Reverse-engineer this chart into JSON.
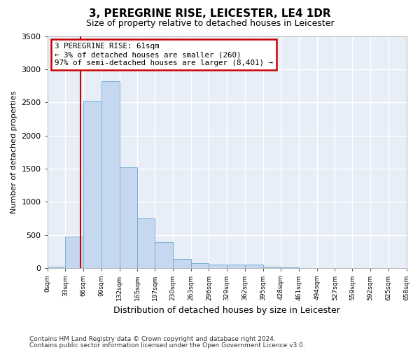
{
  "title": "3, PEREGRINE RISE, LEICESTER, LE4 1DR",
  "subtitle": "Size of property relative to detached houses in Leicester",
  "xlabel": "Distribution of detached houses by size in Leicester",
  "ylabel": "Number of detached properties",
  "bar_color": "#c5d8f0",
  "bar_edge_color": "#7bafd4",
  "background_color": "#e8eef8",
  "grid_color": "#ffffff",
  "bin_edges": [
    0,
    33,
    66,
    99,
    132,
    165,
    197,
    230,
    263,
    296,
    329,
    362,
    395,
    428,
    461,
    494,
    527,
    559,
    592,
    625,
    658
  ],
  "bar_heights": [
    20,
    480,
    2520,
    2820,
    1520,
    750,
    390,
    145,
    80,
    60,
    55,
    55,
    20,
    15,
    0,
    0,
    0,
    0,
    0,
    0
  ],
  "tick_labels": [
    "0sqm",
    "33sqm",
    "66sqm",
    "99sqm",
    "132sqm",
    "165sqm",
    "197sqm",
    "230sqm",
    "263sqm",
    "296sqm",
    "329sqm",
    "362sqm",
    "395sqm",
    "428sqm",
    "461sqm",
    "494sqm",
    "527sqm",
    "559sqm",
    "592sqm",
    "625sqm",
    "658sqm"
  ],
  "property_size": 61,
  "vline_color": "#cc0000",
  "annotation_box_color": "#cc0000",
  "annotation_line1": "3 PEREGRINE RISE: 61sqm",
  "annotation_line2": "← 3% of detached houses are smaller (260)",
  "annotation_line3": "97% of semi-detached houses are larger (8,401) →",
  "ylim": [
    0,
    3500
  ],
  "yticks": [
    0,
    500,
    1000,
    1500,
    2000,
    2500,
    3000,
    3500
  ],
  "footer1": "Contains HM Land Registry data © Crown copyright and database right 2024.",
  "footer2": "Contains public sector information licensed under the Open Government Licence v3.0."
}
